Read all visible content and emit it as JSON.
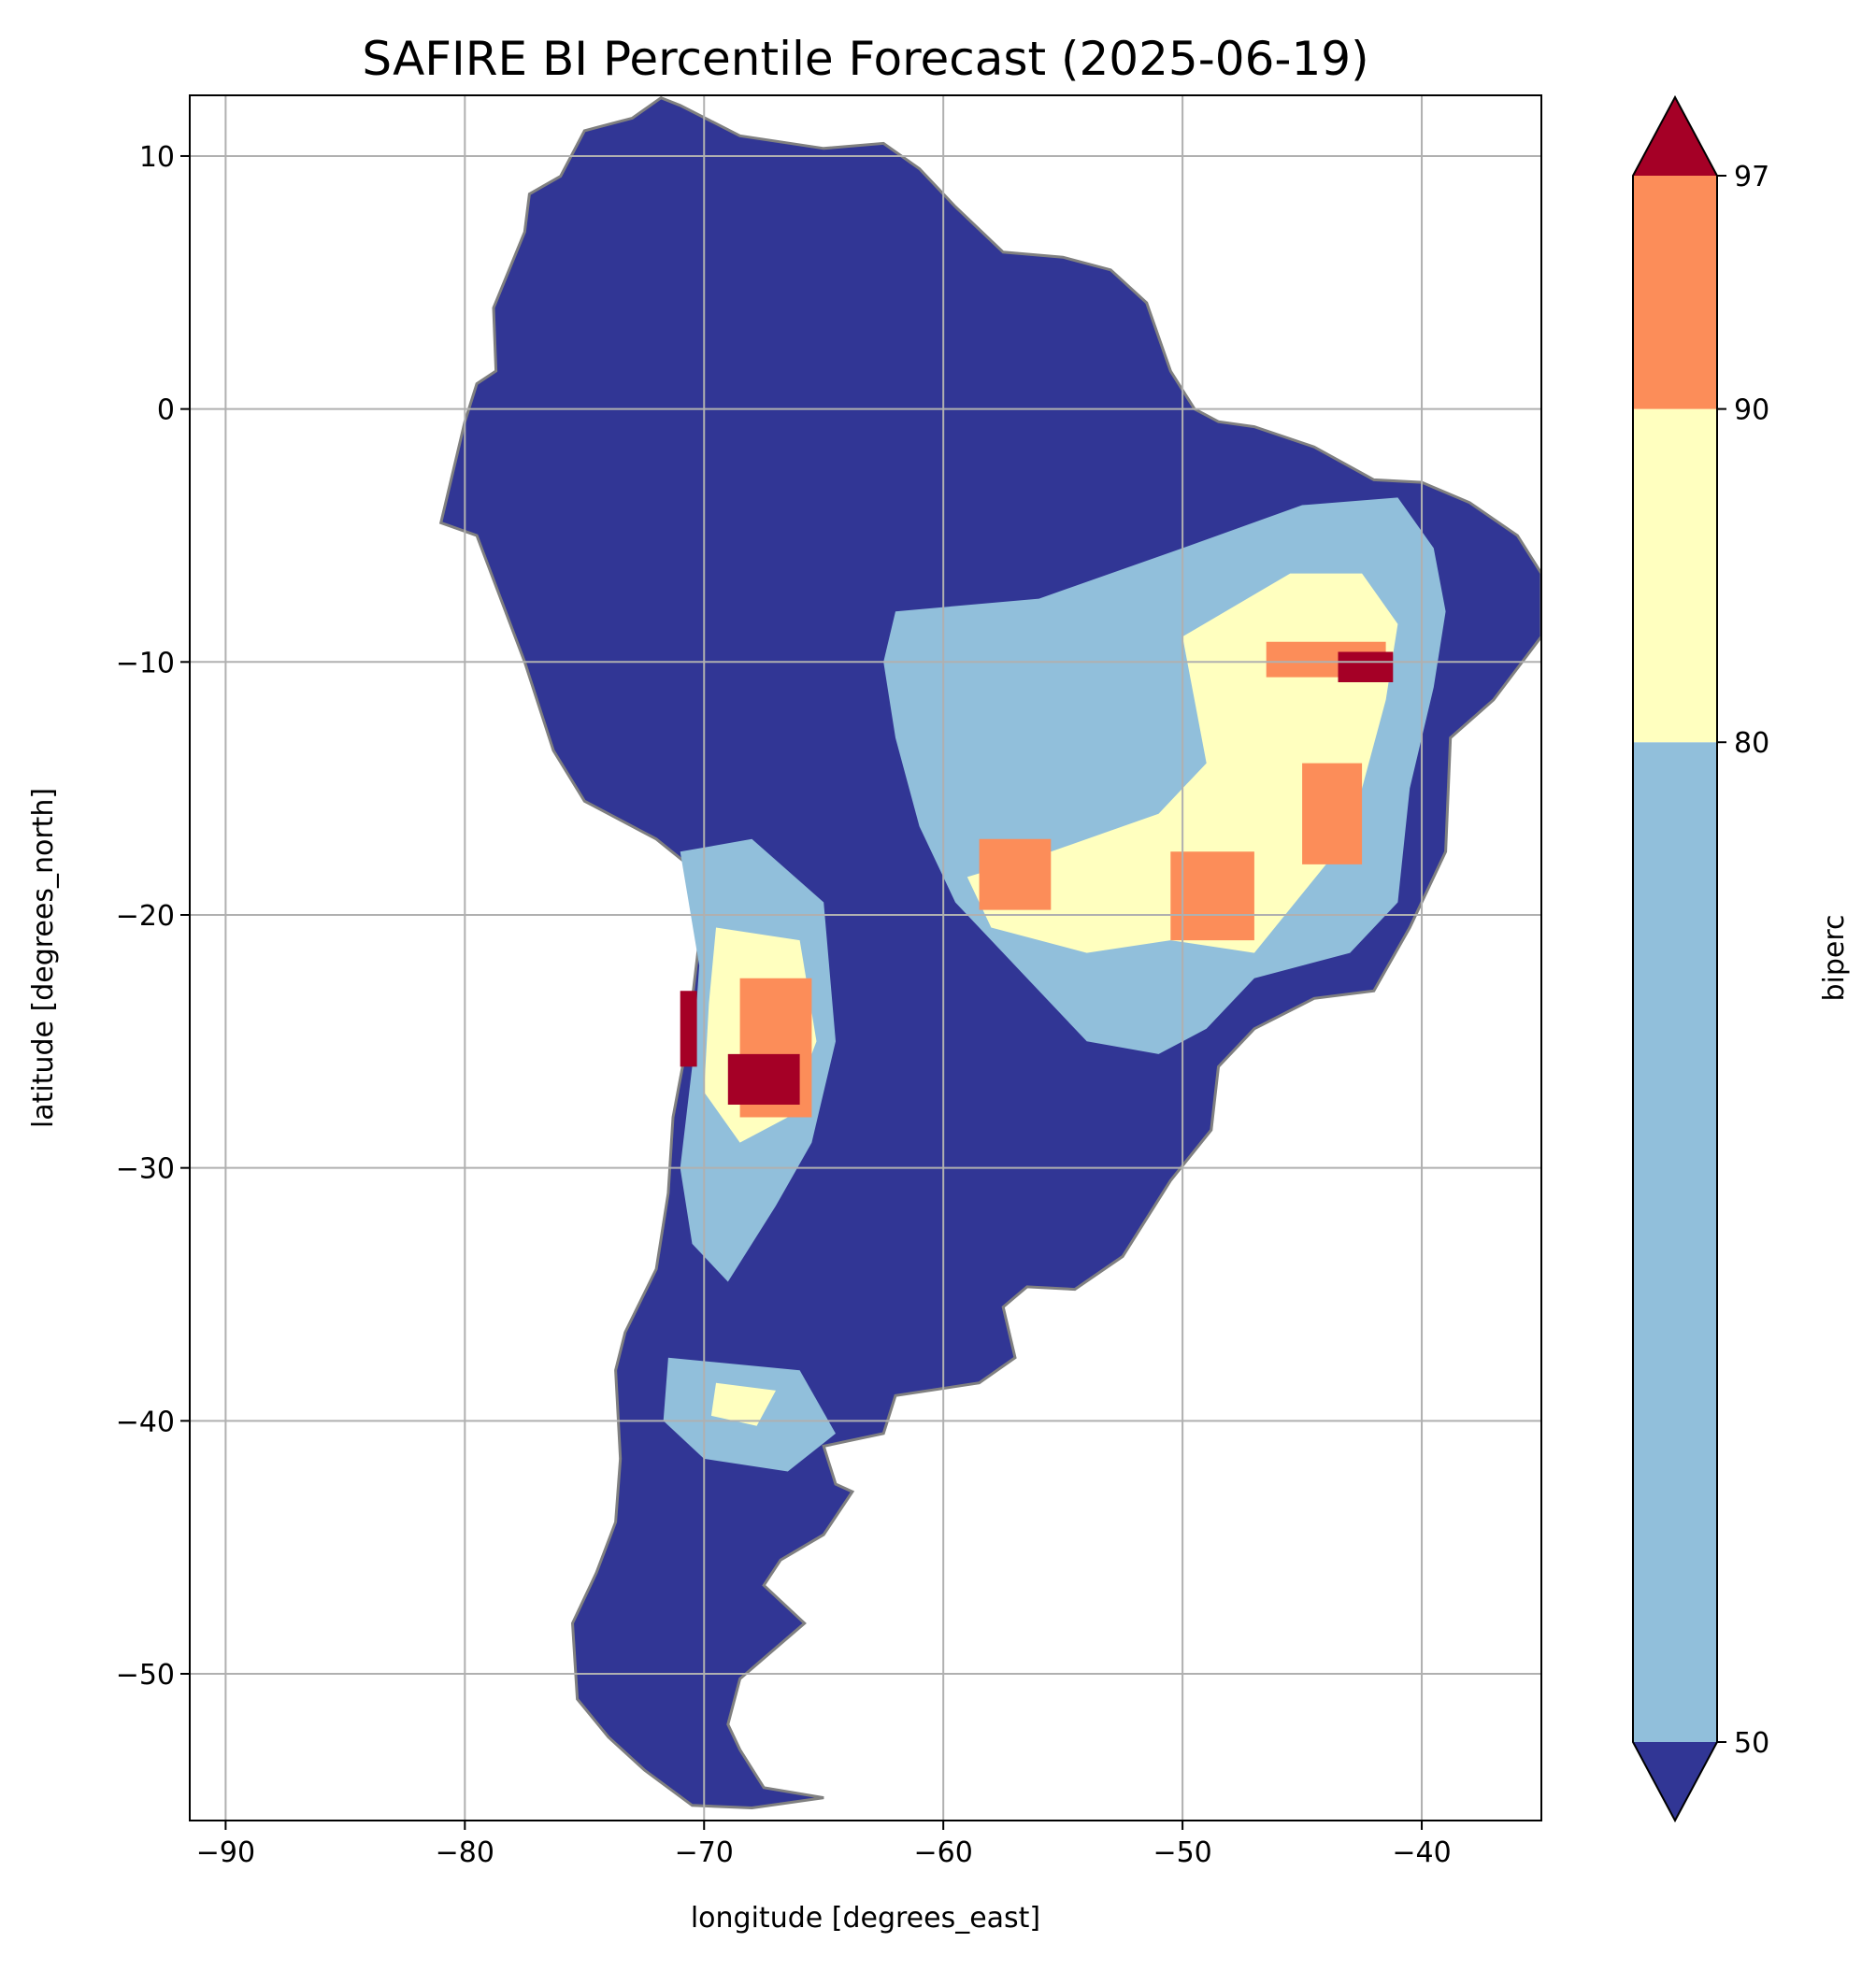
{
  "title": "SAFIRE BI Percentile Forecast (2025-06-19)",
  "chart_data": {
    "type": "heatmap",
    "title": "SAFIRE BI Percentile Forecast (2025-06-19)",
    "xlabel": "longitude [degrees_east]",
    "ylabel": "latitude [degrees_north]",
    "xlim": [
      -91.5,
      -35
    ],
    "ylim": [
      -55.8,
      12.4
    ],
    "x_ticks": [
      -90,
      -80,
      -70,
      -60,
      -50,
      -40
    ],
    "x_tick_labels": [
      "−90",
      "−80",
      "−70",
      "−60",
      "−50",
      "−40"
    ],
    "y_ticks": [
      10,
      0,
      -10,
      -20,
      -30,
      -40,
      -50
    ],
    "y_tick_labels": [
      "10",
      "0",
      "−10",
      "−20",
      "−30",
      "−40",
      "−50"
    ],
    "grid": true,
    "colorbar": {
      "label": "biperc",
      "boundaries": [
        50,
        80,
        90,
        97
      ],
      "tick_labels": [
        "50",
        "80",
        "90",
        "97"
      ],
      "extend": "both",
      "colors": {
        "under": "#313695",
        "50-80": "#91bfdb",
        "80-90": "#ffffbf",
        "90-97": "#fc8d59",
        "over": "#a50026"
      }
    },
    "regions": [
      {
        "class": "under",
        "lon_lat": [
          [
            -77.5,
            -10
          ],
          [
            -79.5,
            -5
          ],
          [
            -81,
            -4.5
          ],
          [
            -80.5,
            -2.5
          ],
          [
            -80,
            -0.5
          ],
          [
            -79.5,
            1
          ],
          [
            -78.7,
            1.5
          ],
          [
            -78.8,
            4
          ],
          [
            -77.5,
            7
          ],
          [
            -77.3,
            8.5
          ],
          [
            -76,
            9.2
          ],
          [
            -75,
            11
          ],
          [
            -73,
            11.5
          ],
          [
            -71.8,
            12.3
          ],
          [
            -71,
            12
          ],
          [
            -68.5,
            10.8
          ],
          [
            -65,
            10.3
          ],
          [
            -62.5,
            10.5
          ],
          [
            -61,
            9.5
          ],
          [
            -59.5,
            8
          ],
          [
            -57.5,
            6.2
          ],
          [
            -55,
            6
          ],
          [
            -53,
            5.5
          ],
          [
            -51.5,
            4.2
          ],
          [
            -50.5,
            1.5
          ],
          [
            -49.5,
            0
          ],
          [
            -48.5,
            -0.5
          ],
          [
            -47,
            -0.7
          ],
          [
            -44.5,
            -1.5
          ],
          [
            -42,
            -2.8
          ],
          [
            -40,
            -2.9
          ],
          [
            -38,
            -3.7
          ],
          [
            -36,
            -5
          ],
          [
            -35,
            -6.5
          ],
          [
            -35,
            -9
          ],
          [
            -37,
            -11.5
          ],
          [
            -38.8,
            -13
          ],
          [
            -39,
            -17.5
          ],
          [
            -40.5,
            -20.5
          ],
          [
            -42,
            -23
          ],
          [
            -44.5,
            -23.3
          ],
          [
            -47,
            -24.5
          ],
          [
            -48.5,
            -26
          ],
          [
            -48.8,
            -28.5
          ],
          [
            -50.5,
            -30.5
          ],
          [
            -52.5,
            -33.5
          ],
          [
            -54.5,
            -34.8
          ],
          [
            -56.5,
            -34.7
          ],
          [
            -57.5,
            -35.5
          ],
          [
            -57,
            -37.5
          ],
          [
            -58.5,
            -38.5
          ],
          [
            -62,
            -39
          ],
          [
            -62.5,
            -40.5
          ],
          [
            -65,
            -41
          ],
          [
            -64.5,
            -42.5
          ],
          [
            -63.8,
            -42.8
          ],
          [
            -65,
            -44.5
          ],
          [
            -66.8,
            -45.5
          ],
          [
            -67.5,
            -46.5
          ],
          [
            -65.8,
            -48
          ],
          [
            -68.5,
            -50.2
          ],
          [
            -69,
            -52
          ],
          [
            -68.5,
            -53
          ],
          [
            -67.5,
            -54.5
          ],
          [
            -65,
            -54.9
          ],
          [
            -68,
            -55.3
          ],
          [
            -70.5,
            -55.2
          ],
          [
            -72.5,
            -53.8
          ],
          [
            -74,
            -52.5
          ],
          [
            -75.3,
            -51
          ],
          [
            -75.5,
            -48
          ],
          [
            -74.5,
            -46
          ],
          [
            -73.7,
            -44
          ],
          [
            -73.5,
            -41.5
          ],
          [
            -73.7,
            -38
          ],
          [
            -73.3,
            -36.5
          ],
          [
            -72,
            -34
          ],
          [
            -71.5,
            -31
          ],
          [
            -71.3,
            -28
          ],
          [
            -70.7,
            -25
          ],
          [
            -70.2,
            -21
          ],
          [
            -70.3,
            -18.3
          ],
          [
            -72,
            -17
          ],
          [
            -75,
            -15.5
          ],
          [
            -76.3,
            -13.5
          ]
        ]
      },
      {
        "class": "50-80",
        "lon_lat": [
          [
            -62,
            -8
          ],
          [
            -56,
            -7.5
          ],
          [
            -50,
            -5.5
          ],
          [
            -45,
            -3.8
          ],
          [
            -41,
            -3.5
          ],
          [
            -39.5,
            -5.5
          ],
          [
            -39,
            -8
          ],
          [
            -39.5,
            -11
          ],
          [
            -40.5,
            -15
          ],
          [
            -41,
            -19.5
          ],
          [
            -43,
            -21.5
          ],
          [
            -47,
            -22.5
          ],
          [
            -49,
            -24.5
          ],
          [
            -51,
            -25.5
          ],
          [
            -54,
            -25
          ],
          [
            -56.5,
            -22.5
          ],
          [
            -59.5,
            -19.5
          ],
          [
            -61,
            -16.5
          ],
          [
            -62,
            -13
          ],
          [
            -62.5,
            -10
          ]
        ]
      },
      {
        "class": "80-90",
        "lon_lat": [
          [
            -50,
            -9
          ],
          [
            -45.5,
            -6.5
          ],
          [
            -42.5,
            -6.5
          ],
          [
            -41,
            -8.5
          ],
          [
            -41.5,
            -11.5
          ],
          [
            -42.5,
            -15
          ],
          [
            -44,
            -18
          ],
          [
            -47,
            -21.5
          ],
          [
            -50.5,
            -21
          ],
          [
            -54,
            -21.5
          ],
          [
            -58,
            -20.5
          ],
          [
            -59,
            -18.5
          ],
          [
            -55.5,
            -17.5
          ],
          [
            -51,
            -16
          ],
          [
            -49,
            -14
          ]
        ]
      },
      {
        "class": "50-80",
        "lon_lat": [
          [
            -71,
            -17.5
          ],
          [
            -68,
            -17
          ],
          [
            -65,
            -19.5
          ],
          [
            -64.5,
            -25
          ],
          [
            -65.5,
            -29
          ],
          [
            -67,
            -31.5
          ],
          [
            -69,
            -34.5
          ],
          [
            -70.5,
            -33
          ],
          [
            -71,
            -30
          ],
          [
            -70.5,
            -26
          ],
          [
            -70.2,
            -22
          ]
        ]
      },
      {
        "class": "80-90",
        "lon_lat": [
          [
            -69.5,
            -20.5
          ],
          [
            -66,
            -21
          ],
          [
            -65.3,
            -25
          ],
          [
            -66.5,
            -28
          ],
          [
            -68.5,
            -29
          ],
          [
            -70,
            -27
          ],
          [
            -69.8,
            -23.5
          ]
        ]
      },
      {
        "class": "50-80",
        "lon_lat": [
          [
            -71.5,
            -37.5
          ],
          [
            -66,
            -38
          ],
          [
            -64.5,
            -40.5
          ],
          [
            -66.5,
            -42
          ],
          [
            -70,
            -41.5
          ],
          [
            -71.7,
            -40
          ]
        ]
      },
      {
        "class": "80-90",
        "lon_lat": [
          [
            -69.5,
            -38.5
          ],
          [
            -67,
            -38.8
          ],
          [
            -67.8,
            -40.2
          ],
          [
            -69.7,
            -39.8
          ]
        ]
      },
      {
        "class": "90-97",
        "lon_lat": [
          [
            -46.5,
            -9.2
          ],
          [
            -41.5,
            -9.2
          ],
          [
            -41.5,
            -10.6
          ],
          [
            -46.5,
            -10.6
          ]
        ]
      },
      {
        "class": "90-97",
        "lon_lat": [
          [
            -45,
            -14
          ],
          [
            -42.5,
            -14
          ],
          [
            -42.5,
            -18
          ],
          [
            -45,
            -18
          ]
        ]
      },
      {
        "class": "90-97",
        "lon_lat": [
          [
            -50.5,
            -17.5
          ],
          [
            -47,
            -17.5
          ],
          [
            -47,
            -21
          ],
          [
            -50.5,
            -21
          ]
        ]
      },
      {
        "class": "90-97",
        "lon_lat": [
          [
            -58.5,
            -17
          ],
          [
            -55.5,
            -17
          ],
          [
            -55.5,
            -19.8
          ],
          [
            -58.5,
            -19.8
          ]
        ]
      },
      {
        "class": "90-97",
        "lon_lat": [
          [
            -68.5,
            -22.5
          ],
          [
            -65.5,
            -22.5
          ],
          [
            -65.5,
            -28
          ],
          [
            -68.5,
            -28
          ]
        ]
      },
      {
        "class": "over",
        "lon_lat": [
          [
            -69,
            -25.5
          ],
          [
            -66,
            -25.5
          ],
          [
            -66,
            -27.5
          ],
          [
            -69,
            -27.5
          ]
        ]
      },
      {
        "class": "over",
        "lon_lat": [
          [
            -71,
            -23
          ],
          [
            -70.3,
            -23
          ],
          [
            -70.3,
            -26
          ],
          [
            -71,
            -26
          ]
        ]
      },
      {
        "class": "over",
        "lon_lat": [
          [
            -43.5,
            -9.6
          ],
          [
            -41.2,
            -9.6
          ],
          [
            -41.2,
            -10.8
          ],
          [
            -43.5,
            -10.8
          ]
        ]
      }
    ]
  }
}
